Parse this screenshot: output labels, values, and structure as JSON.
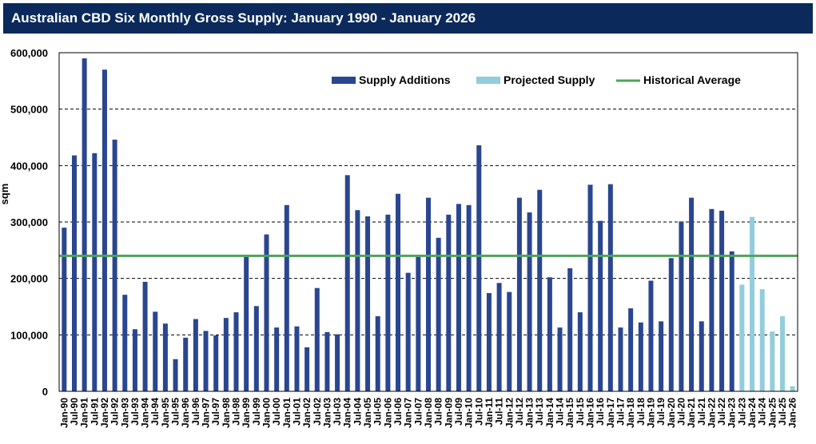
{
  "chart_data": {
    "type": "bar",
    "title": "Australian CBD Six Monthly Gross Supply: January 1990 - January 2026",
    "xlabel": "",
    "ylabel": "sqm",
    "ylim": [
      0,
      600000
    ],
    "yticks": [
      0,
      100000,
      200000,
      300000,
      400000,
      500000,
      600000
    ],
    "ytick_labels": [
      "0",
      "100,000",
      "200,000",
      "300,000",
      "400,000",
      "500,000",
      "600,000"
    ],
    "grid": "horizontal dashed",
    "legend_position": "top-right",
    "categories": [
      "Jan-90",
      "Jul-90",
      "Jan-91",
      "Jul-91",
      "Jan-92",
      "Jul-92",
      "Jan-93",
      "Jul-93",
      "Jan-94",
      "Jul-94",
      "Jan-95",
      "Jul-95",
      "Jan-96",
      "Jul-96",
      "Jan-97",
      "Jul-97",
      "Jan-98",
      "Jul-98",
      "Jan-99",
      "Jul-99",
      "Jan-00",
      "Jul-00",
      "Jan-01",
      "Jul-01",
      "Jan-02",
      "Jul-02",
      "Jan-03",
      "Jul-03",
      "Jan-04",
      "Jul-04",
      "Jan-05",
      "Jul-05",
      "Jan-06",
      "Jul-06",
      "Jan-07",
      "Jul-07",
      "Jan-08",
      "Jul-08",
      "Jan-09",
      "Jul-09",
      "Jan-10",
      "Jul-10",
      "Jan-11",
      "Jul-11",
      "Jan-12",
      "Jul-12",
      "Jan-13",
      "Jul-13",
      "Jan-14",
      "Jul-14",
      "Jan-15",
      "Jul-15",
      "Jan-16",
      "Jul-16",
      "Jan-17",
      "Jul-17",
      "Jan-18",
      "Jul-18",
      "Jan-19",
      "Jul-19",
      "Jan-20",
      "Jul-20",
      "Jan-21",
      "Jul-21",
      "Jan-22",
      "Jul-22",
      "Jan-23",
      "Jul-23",
      "Jan-24",
      "Jul-24",
      "Jan-25",
      "Jul-25",
      "Jan-26"
    ],
    "series": [
      {
        "name": "Supply Additions",
        "color": "#2a4690",
        "values": [
          290000,
          418000,
          590000,
          422000,
          570000,
          446000,
          171000,
          110000,
          194000,
          141000,
          120000,
          57000,
          95000,
          128000,
          107000,
          99000,
          130000,
          140000,
          238000,
          151000,
          278000,
          113000,
          330000,
          115000,
          78000,
          183000,
          105000,
          101000,
          383000,
          321000,
          310000,
          133000,
          313000,
          350000,
          210000,
          238000,
          343000,
          272000,
          313000,
          332000,
          330000,
          436000,
          174000,
          192000,
          176000,
          343000,
          317000,
          357000,
          202000,
          113000,
          218000,
          140000,
          366000,
          302000,
          367000,
          113000,
          147000,
          122000,
          196000,
          124000,
          236000,
          301000,
          343000,
          124000,
          323000,
          320000,
          248000,
          null,
          null,
          null,
          null,
          null,
          null
        ]
      },
      {
        "name": "Projected Supply",
        "color": "#92cddc",
        "values": [
          null,
          null,
          null,
          null,
          null,
          null,
          null,
          null,
          null,
          null,
          null,
          null,
          null,
          null,
          null,
          null,
          null,
          null,
          null,
          null,
          null,
          null,
          null,
          null,
          null,
          null,
          null,
          null,
          null,
          null,
          null,
          null,
          null,
          null,
          null,
          null,
          null,
          null,
          null,
          null,
          null,
          null,
          null,
          null,
          null,
          null,
          null,
          null,
          null,
          null,
          null,
          null,
          null,
          null,
          null,
          null,
          null,
          null,
          null,
          null,
          null,
          null,
          null,
          null,
          null,
          null,
          null,
          189000,
          309000,
          181000,
          106000,
          133000,
          9000
        ]
      }
    ],
    "reference_line": {
      "name": "Historical Average",
      "value": 240000,
      "color": "#4ea35a"
    }
  }
}
